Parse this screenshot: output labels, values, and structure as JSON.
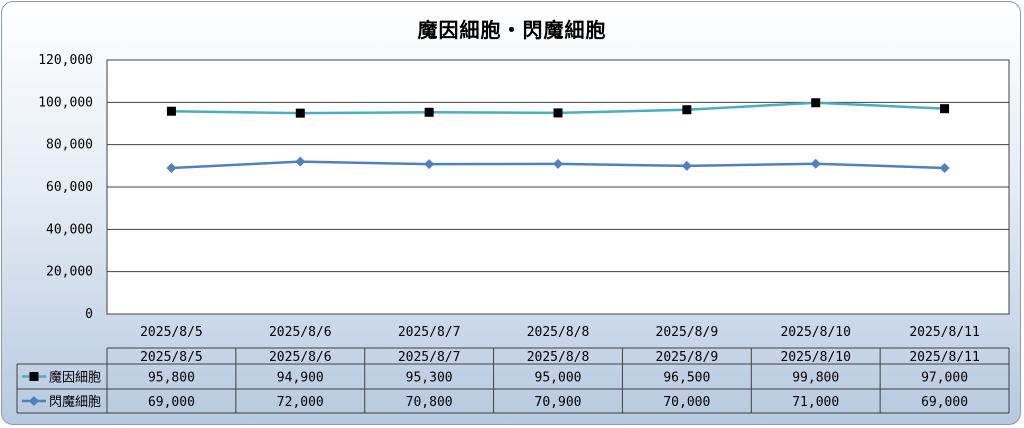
{
  "chart_data": {
    "type": "line",
    "title": "魔因細胞・閃魔細胞",
    "categories": [
      "2025/8/5",
      "2025/8/6",
      "2025/8/7",
      "2025/8/8",
      "2025/8/9",
      "2025/8/10",
      "2025/8/11"
    ],
    "ylim": [
      0,
      120000
    ],
    "yticks": [
      0,
      20000,
      40000,
      60000,
      80000,
      100000,
      120000
    ],
    "ytick_labels": [
      "0",
      "20,000",
      "40,000",
      "60,000",
      "80,000",
      "100,000",
      "120,000"
    ],
    "grid": true,
    "legend_placement": "data-table",
    "series": [
      {
        "name": "魔因細胞",
        "values": [
          95800,
          94900,
          95300,
          95000,
          96500,
          99800,
          97000
        ],
        "value_labels": [
          "95,800",
          "94,900",
          "95,300",
          "95,000",
          "96,500",
          "99,800",
          "97,000"
        ],
        "line_color": "#4bacc6",
        "marker": "square",
        "marker_color": "#000000"
      },
      {
        "name": "閃魔細胞",
        "values": [
          69000,
          72000,
          70800,
          70900,
          70000,
          71000,
          69000
        ],
        "value_labels": [
          "69,000",
          "72,000",
          "70,800",
          "70,900",
          "70,000",
          "71,000",
          "69,000"
        ],
        "line_color": "#4f81bd",
        "marker": "diamond",
        "marker_color": "#4f81bd"
      }
    ]
  }
}
